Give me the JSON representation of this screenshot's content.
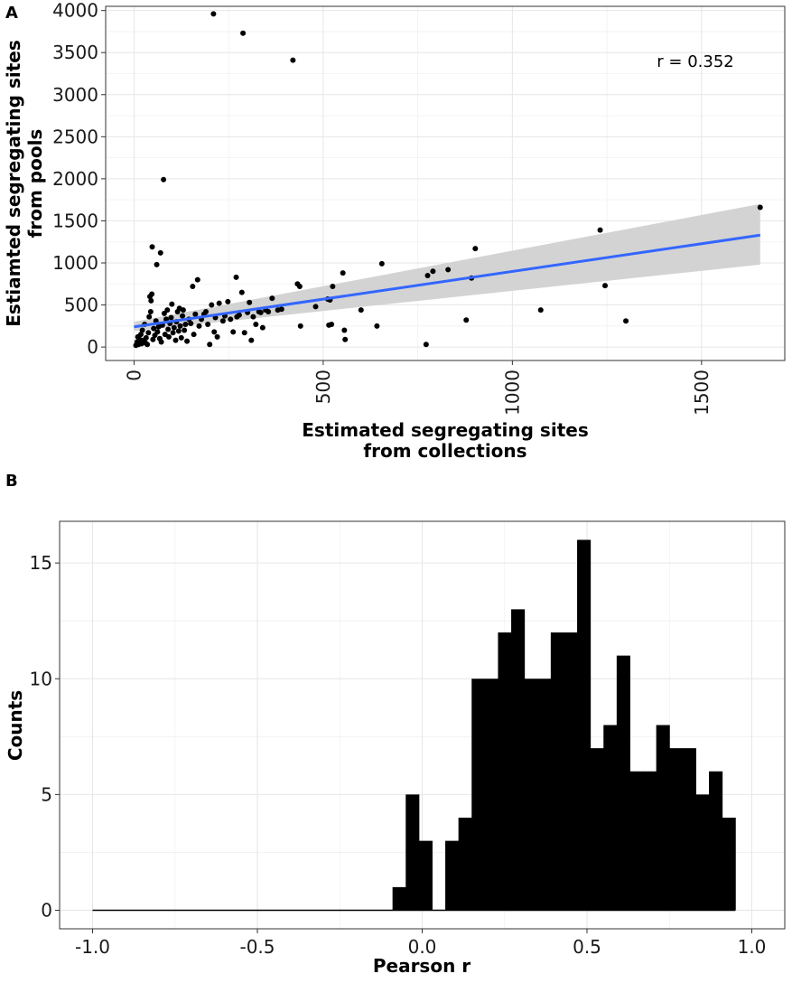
{
  "panels": {
    "a_tag": "A",
    "b_tag": "B"
  },
  "chart_data": [
    {
      "type": "scatter",
      "panel": "A",
      "xlabel_line1": "Estimated segregating sites",
      "xlabel_line2": "from collections",
      "ylabel_line1": "Estiamted segregating sites",
      "ylabel_line2": "from pools",
      "annotation": "r = 0.352",
      "xlim": [
        -75,
        1720
      ],
      "ylim": [
        -160,
        4050
      ],
      "x_ticks": [
        0,
        500,
        1000,
        1500
      ],
      "x_tick_labels": [
        "0",
        "500",
        "1000",
        "1500"
      ],
      "y_ticks": [
        0,
        500,
        1000,
        1500,
        2000,
        2500,
        3000,
        3500,
        4000
      ],
      "y_tick_labels": [
        "0",
        "500",
        "1000",
        "1500",
        "2000",
        "2500",
        "3000",
        "3500",
        "4000"
      ],
      "grid": true,
      "point_color": "#000000",
      "fit_color": "#3366ff",
      "band_color": "#d3d3d3",
      "fit_line": {
        "x": [
          0,
          1655
        ],
        "y": [
          240,
          1330
        ]
      },
      "confidence_band": {
        "x": [
          0,
          1655
        ],
        "lower": [
          190,
          980
        ],
        "upper": [
          300,
          1700
        ]
      },
      "points": [
        [
          5,
          20
        ],
        [
          8,
          60
        ],
        [
          10,
          120
        ],
        [
          12,
          30
        ],
        [
          15,
          90
        ],
        [
          18,
          150
        ],
        [
          20,
          40
        ],
        [
          22,
          200
        ],
        [
          25,
          80
        ],
        [
          28,
          270
        ],
        [
          30,
          50
        ],
        [
          32,
          110
        ],
        [
          35,
          30
        ],
        [
          38,
          170
        ],
        [
          40,
          360
        ],
        [
          42,
          600
        ],
        [
          44,
          420
        ],
        [
          45,
          550
        ],
        [
          47,
          630
        ],
        [
          48,
          1190
        ],
        [
          50,
          90
        ],
        [
          52,
          220
        ],
        [
          55,
          140
        ],
        [
          58,
          310
        ],
        [
          60,
          980
        ],
        [
          62,
          180
        ],
        [
          65,
          240
        ],
        [
          68,
          100
        ],
        [
          70,
          1120
        ],
        [
          72,
          60
        ],
        [
          75,
          260
        ],
        [
          78,
          1990
        ],
        [
          80,
          400
        ],
        [
          82,
          150
        ],
        [
          85,
          330
        ],
        [
          88,
          440
        ],
        [
          90,
          210
        ],
        [
          92,
          120
        ],
        [
          95,
          280
        ],
        [
          98,
          350
        ],
        [
          100,
          510
        ],
        [
          103,
          170
        ],
        [
          106,
          230
        ],
        [
          110,
          80
        ],
        [
          112,
          300
        ],
        [
          115,
          420
        ],
        [
          118,
          190
        ],
        [
          120,
          460
        ],
        [
          122,
          250
        ],
        [
          125,
          110
        ],
        [
          128,
          370
        ],
        [
          130,
          440
        ],
        [
          133,
          200
        ],
        [
          136,
          270
        ],
        [
          140,
          70
        ],
        [
          145,
          330
        ],
        [
          150,
          280
        ],
        [
          155,
          720
        ],
        [
          158,
          150
        ],
        [
          162,
          390
        ],
        [
          168,
          800
        ],
        [
          172,
          250
        ],
        [
          178,
          330
        ],
        [
          185,
          390
        ],
        [
          190,
          420
        ],
        [
          195,
          270
        ],
        [
          200,
          30
        ],
        [
          205,
          500
        ],
        [
          210,
          3960
        ],
        [
          212,
          180
        ],
        [
          215,
          350
        ],
        [
          220,
          120
        ],
        [
          225,
          520
        ],
        [
          235,
          310
        ],
        [
          240,
          370
        ],
        [
          248,
          540
        ],
        [
          255,
          330
        ],
        [
          262,
          180
        ],
        [
          270,
          830
        ],
        [
          272,
          360
        ],
        [
          278,
          380
        ],
        [
          285,
          650
        ],
        [
          288,
          3730
        ],
        [
          292,
          170
        ],
        [
          300,
          410
        ],
        [
          305,
          530
        ],
        [
          310,
          80
        ],
        [
          315,
          360
        ],
        [
          322,
          270
        ],
        [
          330,
          420
        ],
        [
          335,
          410
        ],
        [
          340,
          230
        ],
        [
          348,
          440
        ],
        [
          355,
          420
        ],
        [
          365,
          580
        ],
        [
          380,
          440
        ],
        [
          390,
          450
        ],
        [
          420,
          3410
        ],
        [
          432,
          750
        ],
        [
          438,
          720
        ],
        [
          440,
          250
        ],
        [
          480,
          480
        ],
        [
          512,
          570
        ],
        [
          515,
          260
        ],
        [
          518,
          560
        ],
        [
          522,
          270
        ],
        [
          525,
          720
        ],
        [
          552,
          880
        ],
        [
          556,
          200
        ],
        [
          558,
          90
        ],
        [
          600,
          440
        ],
        [
          642,
          250
        ],
        [
          655,
          990
        ],
        [
          772,
          30
        ],
        [
          776,
          850
        ],
        [
          790,
          900
        ],
        [
          830,
          920
        ],
        [
          878,
          320
        ],
        [
          892,
          820
        ],
        [
          902,
          1170
        ],
        [
          1075,
          440
        ],
        [
          1232,
          1390
        ],
        [
          1245,
          730
        ],
        [
          1300,
          310
        ],
        [
          1655,
          1660
        ]
      ]
    },
    {
      "type": "bar",
      "panel": "B",
      "xlabel": "Pearson r",
      "ylabel": "Counts",
      "xlim": [
        -1.1,
        1.1
      ],
      "ylim": [
        -0.8,
        16.8
      ],
      "x_ticks": [
        -1.0,
        -0.5,
        0.0,
        0.5,
        1.0
      ],
      "x_tick_labels": [
        "-1.0",
        "-0.5",
        "0.0",
        "0.5",
        "1.0"
      ],
      "y_ticks": [
        0,
        5,
        10,
        15
      ],
      "y_tick_labels": [
        "0",
        "5",
        "10",
        "15"
      ],
      "grid": true,
      "bar_color": "#000000",
      "bin_width": 0.04,
      "bins": [
        {
          "start": -1.0,
          "count": 0
        },
        {
          "start": -0.96,
          "count": 0
        },
        {
          "start": -0.92,
          "count": 0
        },
        {
          "start": -0.88,
          "count": 0
        },
        {
          "start": -0.84,
          "count": 0
        },
        {
          "start": -0.8,
          "count": 0
        },
        {
          "start": -0.76,
          "count": 0
        },
        {
          "start": -0.72,
          "count": 0
        },
        {
          "start": -0.68,
          "count": 0
        },
        {
          "start": -0.64,
          "count": 0
        },
        {
          "start": -0.6,
          "count": 0
        },
        {
          "start": -0.56,
          "count": 0
        },
        {
          "start": -0.52,
          "count": 0
        },
        {
          "start": -0.48,
          "count": 0
        },
        {
          "start": -0.44,
          "count": 0
        },
        {
          "start": -0.4,
          "count": 0
        },
        {
          "start": -0.36,
          "count": 0
        },
        {
          "start": -0.32,
          "count": 0
        },
        {
          "start": -0.28,
          "count": 0
        },
        {
          "start": -0.24,
          "count": 0
        },
        {
          "start": -0.2,
          "count": 0
        },
        {
          "start": -0.16,
          "count": 0
        },
        {
          "start": -0.12,
          "count": 0
        },
        {
          "start": -0.09,
          "count": 1
        },
        {
          "start": -0.05,
          "count": 5
        },
        {
          "start": -0.01,
          "count": 3
        },
        {
          "start": 0.03,
          "count": 0
        },
        {
          "start": 0.07,
          "count": 3
        },
        {
          "start": 0.11,
          "count": 4
        },
        {
          "start": 0.15,
          "count": 10
        },
        {
          "start": 0.19,
          "count": 10
        },
        {
          "start": 0.23,
          "count": 12
        },
        {
          "start": 0.27,
          "count": 13
        },
        {
          "start": 0.31,
          "count": 10
        },
        {
          "start": 0.35,
          "count": 10
        },
        {
          "start": 0.39,
          "count": 12
        },
        {
          "start": 0.43,
          "count": 12
        },
        {
          "start": 0.47,
          "count": 16
        },
        {
          "start": 0.51,
          "count": 7
        },
        {
          "start": 0.55,
          "count": 8
        },
        {
          "start": 0.59,
          "count": 11
        },
        {
          "start": 0.63,
          "count": 6
        },
        {
          "start": 0.67,
          "count": 6
        },
        {
          "start": 0.71,
          "count": 8
        },
        {
          "start": 0.75,
          "count": 7
        },
        {
          "start": 0.79,
          "count": 7
        },
        {
          "start": 0.83,
          "count": 5
        },
        {
          "start": 0.87,
          "count": 6
        },
        {
          "start": 0.91,
          "count": 4
        }
      ]
    }
  ]
}
